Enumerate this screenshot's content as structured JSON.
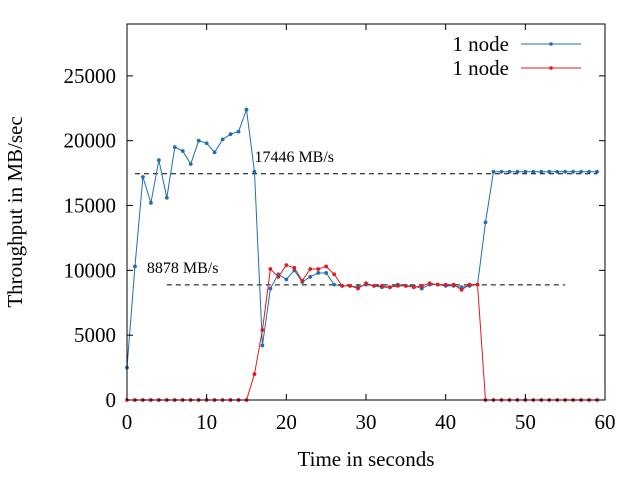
{
  "chart_data": {
    "type": "line",
    "title": "",
    "xlabel": "Time in seconds",
    "ylabel": "Throughput in MB/sec",
    "xlim": [
      0,
      60
    ],
    "ylim": [
      0,
      29000
    ],
    "xticks": [
      0,
      10,
      20,
      30,
      40,
      50,
      60
    ],
    "yticks": [
      0,
      5000,
      10000,
      15000,
      20000,
      25000
    ],
    "grid": false,
    "legend_position": "top-right",
    "x": [
      0,
      1,
      2,
      3,
      4,
      5,
      6,
      7,
      8,
      9,
      10,
      11,
      12,
      13,
      14,
      15,
      16,
      17,
      18,
      19,
      20,
      21,
      22,
      23,
      24,
      25,
      26,
      27,
      28,
      29,
      30,
      31,
      32,
      33,
      34,
      35,
      36,
      37,
      38,
      39,
      40,
      41,
      42,
      43,
      44,
      45,
      46,
      47,
      48,
      49,
      50,
      51,
      52,
      53,
      54,
      55,
      56,
      57,
      58,
      59
    ],
    "series": [
      {
        "name": "1 node",
        "color": "#1f6fb0",
        "values": [
          2500,
          10300,
          17200,
          15200,
          18500,
          15600,
          19500,
          19200,
          18200,
          20000,
          19800,
          19100,
          20100,
          20500,
          20700,
          22400,
          17600,
          4200,
          8600,
          9700,
          9300,
          10000,
          9100,
          9500,
          9800,
          9800,
          8900,
          8800,
          8800,
          8700,
          8900,
          8800,
          8700,
          8700,
          8900,
          8800,
          8800,
          8600,
          8900,
          8900,
          8800,
          8800,
          8700,
          8800,
          8900,
          13700,
          17600,
          17600,
          17600,
          17600,
          17600,
          17600,
          17600,
          17600,
          17600,
          17600,
          17600,
          17600,
          17600,
          17600
        ]
      },
      {
        "name": "1 node",
        "color": "#e41a1c",
        "values": [
          0,
          0,
          0,
          0,
          0,
          0,
          0,
          0,
          0,
          0,
          0,
          0,
          0,
          0,
          0,
          0,
          2000,
          5400,
          10100,
          9500,
          10400,
          10200,
          9200,
          10100,
          10100,
          10300,
          9700,
          8800,
          8800,
          8600,
          9000,
          8800,
          8800,
          8700,
          8800,
          8800,
          8700,
          8800,
          9000,
          8900,
          8900,
          8900,
          8500,
          8900,
          8900,
          0,
          0,
          0,
          0,
          0,
          0,
          0,
          0,
          0,
          0,
          0,
          0,
          0,
          0,
          0
        ]
      }
    ],
    "annotations": [
      {
        "text": "17446 MB/s",
        "value": 17446,
        "x_start": 1,
        "x_end": 59,
        "label_x": 16
      },
      {
        "text": "8878 MB/s",
        "value": 8878,
        "x_start": 5,
        "x_end": 55,
        "label_x": 2.5
      }
    ]
  }
}
